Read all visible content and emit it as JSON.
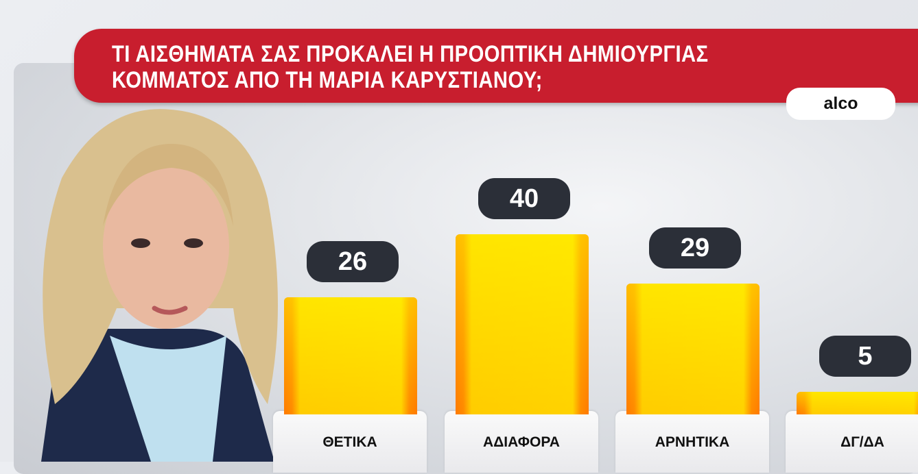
{
  "title_lines": [
    "ΤΙ ΑΙΣΘΗΜΑΤΑ ΣΑΣ ΠΡΟΚΑΛΕΙ Η ΠΡΟΟΠΤΙΚΗ ΔΗΜΙΟΥΡΓΙΑΣ",
    "ΚΟΜΜΑΤΟΣ ΑΠΟ ΤΗ ΜΑΡΙΑ ΚΑΡΥΣΤΙΑΝΟΥ;"
  ],
  "source": "alco",
  "colors": {
    "banner": "#c81e2e",
    "bar": "#ffd200",
    "bar_edge": "#ff7a00",
    "pill": "#2b2f38"
  },
  "chart_data": {
    "type": "bar",
    "title": "ΤΙ ΑΙΣΘΗΜΑΤΑ ΣΑΣ ΠΡΟΚΑΛΕΙ Η ΠΡΟΟΠΤΙΚΗ ΔΗΜΙΟΥΡΓΙΑΣ ΚΟΜΜΑΤΟΣ ΑΠΟ ΤΗ ΜΑΡΙΑ ΚΑΡΥΣΤΙΑΝΟΥ;",
    "categories": [
      "ΘΕΤΙΚΑ",
      "ΑΔΙΑΦΟΡΑ",
      "ΑΡΝΗΤΙΚΑ",
      "ΔΓ/ΔΑ"
    ],
    "values": [
      26,
      40,
      29,
      5
    ],
    "labels": [
      "26",
      "40",
      "29",
      "5"
    ],
    "grid": false
  }
}
